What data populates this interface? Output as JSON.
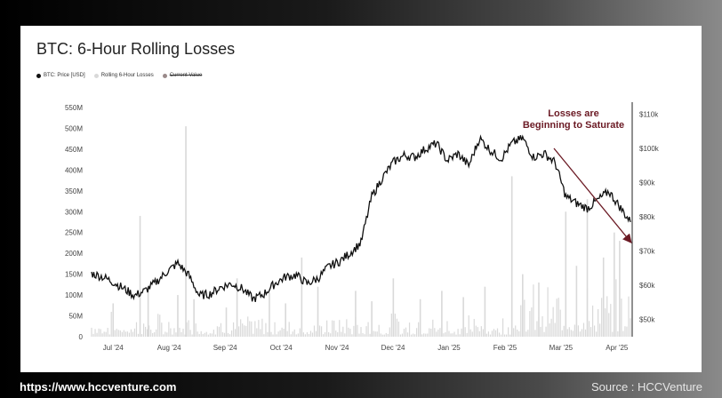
{
  "footer": {
    "url": "https://www.hccventure.com",
    "source": "Source : HCCVenture"
  },
  "chart_data": {
    "type": "line",
    "title": "BTC: 6-Hour Rolling Losses",
    "legend": [
      {
        "name": "BTC: Price [USD]",
        "color": "#111111"
      },
      {
        "name": "Rolling 6-Hour Losses",
        "color": "#d9d9d9"
      },
      {
        "name": "Current Value",
        "color": "#9a8a8a",
        "strikethrough": true
      }
    ],
    "legend_position": "top-left",
    "grid": false,
    "annotation": {
      "line1": "Losses are",
      "line2": "Beginning to Saturate",
      "color": "#6b1a24"
    },
    "y_left": {
      "ticks": [
        "550M",
        "500M",
        "450M",
        "400M",
        "350M",
        "300M",
        "250M",
        "200M",
        "150M",
        "100M",
        "50M",
        "0"
      ],
      "range": [
        0,
        550000000
      ]
    },
    "y_right": {
      "ticks": [
        "$110k",
        "$100k",
        "$90k",
        "$80k",
        "$70k",
        "$60k",
        "$50k"
      ],
      "range": [
        45000,
        112000
      ]
    },
    "x_ticks": [
      "Jul '24",
      "Aug '24",
      "Sep '24",
      "Oct '24",
      "Nov '24",
      "Dec '24",
      "Jan '25",
      "Feb '25",
      "Mar '25",
      "Apr '25"
    ],
    "series": [
      {
        "name": "BTC: Price [USD]",
        "axis": "right",
        "color": "#111111",
        "x": [
          0,
          0.02,
          0.04,
          0.06,
          0.08,
          0.1,
          0.12,
          0.14,
          0.16,
          0.18,
          0.2,
          0.22,
          0.24,
          0.26,
          0.28,
          0.3,
          0.32,
          0.34,
          0.36,
          0.38,
          0.4,
          0.42,
          0.44,
          0.46,
          0.48,
          0.5,
          0.52,
          0.54,
          0.56,
          0.58,
          0.6,
          0.62,
          0.64,
          0.66,
          0.68,
          0.7,
          0.72,
          0.74,
          0.76,
          0.78,
          0.8,
          0.82,
          0.84,
          0.86,
          0.88,
          0.9,
          0.92,
          0.94,
          0.96,
          0.98,
          1.0
        ],
        "y": [
          63500,
          62500,
          61000,
          59000,
          57000,
          58500,
          61000,
          64000,
          66500,
          63000,
          57000,
          57500,
          59500,
          60500,
          59000,
          56000,
          57500,
          60500,
          62500,
          63000,
          60500,
          62000,
          65500,
          67000,
          69500,
          72500,
          86000,
          91500,
          96000,
          98000,
          97500,
          100000,
          101500,
          96500,
          98500,
          95000,
          103000,
          99500,
          97000,
          101500,
          103000,
          97500,
          98500,
          96000,
          86000,
          84000,
          82500,
          85000,
          87500,
          83000,
          78500
        ]
      },
      {
        "name": "Rolling 6-Hour Losses",
        "axis": "left",
        "color": "#d9d9d9",
        "note": "spikes (fraction of the 0-550M range)",
        "x": [
          0.04,
          0.09,
          0.105,
          0.16,
          0.175,
          0.19,
          0.25,
          0.27,
          0.33,
          0.36,
          0.39,
          0.42,
          0.49,
          0.52,
          0.56,
          0.61,
          0.65,
          0.69,
          0.73,
          0.78,
          0.8,
          0.83,
          0.88,
          0.9,
          0.92,
          0.95,
          0.97,
          0.98
        ],
        "y": [
          80000000,
          290000000,
          120000000,
          100000000,
          505000000,
          90000000,
          70000000,
          140000000,
          105000000,
          80000000,
          190000000,
          120000000,
          110000000,
          85000000,
          140000000,
          90000000,
          110000000,
          95000000,
          120000000,
          385000000,
          150000000,
          130000000,
          300000000,
          170000000,
          330000000,
          190000000,
          250000000,
          230000000
        ]
      }
    ]
  }
}
